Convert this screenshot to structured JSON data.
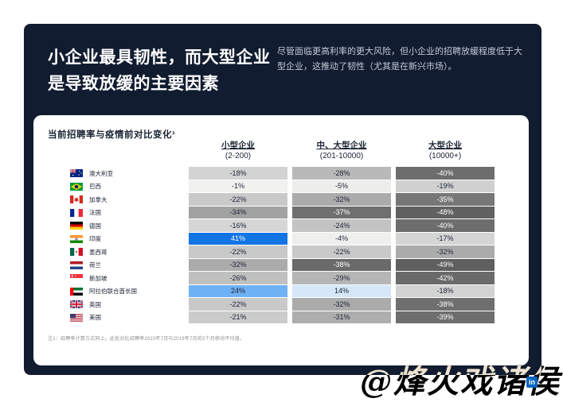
{
  "hero": {
    "title_line1": "小企业最具韧性，而大型企业",
    "title_line2": "是导致放缓的主要因素",
    "subtitle": "尽管面临更高利率的更大风险，但小企业的招聘放缓程度低于大型企业，这推动了韧性（尤其是在新兴市场）。"
  },
  "card": {
    "chart_title": "当前招聘率与疫情前对比变化¹",
    "footnote": "注1：招聘率计算方式同上。此处对比招聘率2023年7月与2019年7月的3个月移动平均值。"
  },
  "table": {
    "columns": [
      {
        "label": "小型企业",
        "range": "(2-200)"
      },
      {
        "label": "中、大型企业",
        "range": "(201-10000)"
      },
      {
        "label": "大型企业",
        "range": "(10000+)"
      }
    ],
    "rows": [
      {
        "country": "澳大利亚",
        "flag": "au",
        "cells": [
          {
            "text": "-18%",
            "bg": "#d3d3d3",
            "fg": "dark"
          },
          {
            "text": "-28%",
            "bg": "#b9b9b9",
            "fg": "dark"
          },
          {
            "text": "-40%",
            "bg": "#6d6d6d",
            "fg": "light"
          }
        ]
      },
      {
        "country": "巴西",
        "flag": "br",
        "cells": [
          {
            "text": "-1%",
            "bg": "#f1f1f0",
            "fg": "dark"
          },
          {
            "text": "-5%",
            "bg": "#ededec",
            "fg": "dark"
          },
          {
            "text": "-19%",
            "bg": "#d0d0d0",
            "fg": "dark"
          }
        ]
      },
      {
        "country": "加拿大",
        "flag": "ca",
        "cells": [
          {
            "text": "-22%",
            "bg": "#c9c9c9",
            "fg": "dark"
          },
          {
            "text": "-32%",
            "bg": "#ababab",
            "fg": "dark"
          },
          {
            "text": "-35%",
            "bg": "#777777",
            "fg": "light"
          }
        ]
      },
      {
        "country": "法国",
        "flag": "fr",
        "cells": [
          {
            "text": "-34%",
            "bg": "#a2a2a2",
            "fg": "dark"
          },
          {
            "text": "-37%",
            "bg": "#6f6f6f",
            "fg": "light"
          },
          {
            "text": "-48%",
            "bg": "#616161",
            "fg": "light"
          }
        ]
      },
      {
        "country": "德国",
        "flag": "de",
        "cells": [
          {
            "text": "-16%",
            "bg": "#d6d6d6",
            "fg": "dark"
          },
          {
            "text": "-24%",
            "bg": "#c3c3c3",
            "fg": "dark"
          },
          {
            "text": "-40%",
            "bg": "#6d6d6d",
            "fg": "light"
          }
        ]
      },
      {
        "country": "印度",
        "flag": "in",
        "cells": [
          {
            "text": "41%",
            "bg": "#1374e4",
            "fg": "light"
          },
          {
            "text": "-4%",
            "bg": "#efefee",
            "fg": "dark"
          },
          {
            "text": "-17%",
            "bg": "#d5d5d5",
            "fg": "dark"
          }
        ]
      },
      {
        "country": "墨西哥",
        "flag": "mx",
        "cells": [
          {
            "text": "-22%",
            "bg": "#c9c9c9",
            "fg": "dark"
          },
          {
            "text": "-22%",
            "bg": "#c9c9c9",
            "fg": "dark"
          },
          {
            "text": "-32%",
            "bg": "#ababab",
            "fg": "dark"
          }
        ]
      },
      {
        "country": "荷兰",
        "flag": "nl",
        "cells": [
          {
            "text": "-32%",
            "bg": "#ababab",
            "fg": "dark"
          },
          {
            "text": "-38%",
            "bg": "#6a6a6a",
            "fg": "light"
          },
          {
            "text": "-49%",
            "bg": "#5f5f5f",
            "fg": "light"
          }
        ]
      },
      {
        "country": "新加坡",
        "flag": "sg",
        "cells": [
          {
            "text": "-26%",
            "bg": "#c0c0c0",
            "fg": "dark"
          },
          {
            "text": "-29%",
            "bg": "#b6b6b6",
            "fg": "dark"
          },
          {
            "text": "-42%",
            "bg": "#6a6a6a",
            "fg": "light"
          }
        ]
      },
      {
        "country": "阿拉伯联合酋长国",
        "flag": "ae",
        "cells": [
          {
            "text": "24%",
            "bg": "#6fb1f5",
            "fg": "dark"
          },
          {
            "text": "14%",
            "bg": "#d4e8fa",
            "fg": "dark"
          },
          {
            "text": "-18%",
            "bg": "#d2d2d2",
            "fg": "dark"
          }
        ]
      },
      {
        "country": "英国",
        "flag": "uk",
        "cells": [
          {
            "text": "-22%",
            "bg": "#c9c9c9",
            "fg": "dark"
          },
          {
            "text": "-32%",
            "bg": "#ababab",
            "fg": "dark"
          },
          {
            "text": "-38%",
            "bg": "#6f6f6f",
            "fg": "light"
          }
        ]
      },
      {
        "country": "美国",
        "flag": "us",
        "cells": [
          {
            "text": "-21%",
            "bg": "#cbcbcb",
            "fg": "dark"
          },
          {
            "text": "-31%",
            "bg": "#aeaeae",
            "fg": "dark"
          },
          {
            "text": "-39%",
            "bg": "#6e6e6e",
            "fg": "light"
          }
        ]
      }
    ]
  },
  "chart_data": {
    "type": "heatmap",
    "title": "当前招聘率与疫情前对比变化¹",
    "unit": "%",
    "categories": [
      "澳大利亚",
      "巴西",
      "加拿大",
      "法国",
      "德国",
      "印度",
      "墨西哥",
      "荷兰",
      "新加坡",
      "阿拉伯联合酋长国",
      "英国",
      "美国"
    ],
    "series": [
      {
        "name": "小型企业 (2-200)",
        "values": [
          -18,
          -1,
          -22,
          -34,
          -16,
          41,
          -22,
          -32,
          -26,
          24,
          -22,
          -21
        ]
      },
      {
        "name": "中、大型企业 (201-10000)",
        "values": [
          -28,
          -5,
          -32,
          -37,
          -24,
          -4,
          -22,
          -38,
          -29,
          14,
          -32,
          -31
        ]
      },
      {
        "name": "大型企业 (10000+)",
        "values": [
          -40,
          -19,
          -35,
          -48,
          -40,
          -17,
          -32,
          -49,
          -42,
          -18,
          -38,
          -39
        ]
      }
    ],
    "legend_position": "none",
    "positive_color": "#1374e4",
    "negative_palette": "gray scale, darker = larger decline"
  },
  "colors": {
    "panel_navy": "#121c30",
    "accent_blue": "#1374e4",
    "light_blue": "#6fb1f5",
    "pale_blue": "#d4e8fa",
    "linkedin_blue": "#0a66c2"
  },
  "watermark": {
    "text": "@烽火戏诸侯"
  },
  "linkedin": {
    "badge": "in"
  }
}
